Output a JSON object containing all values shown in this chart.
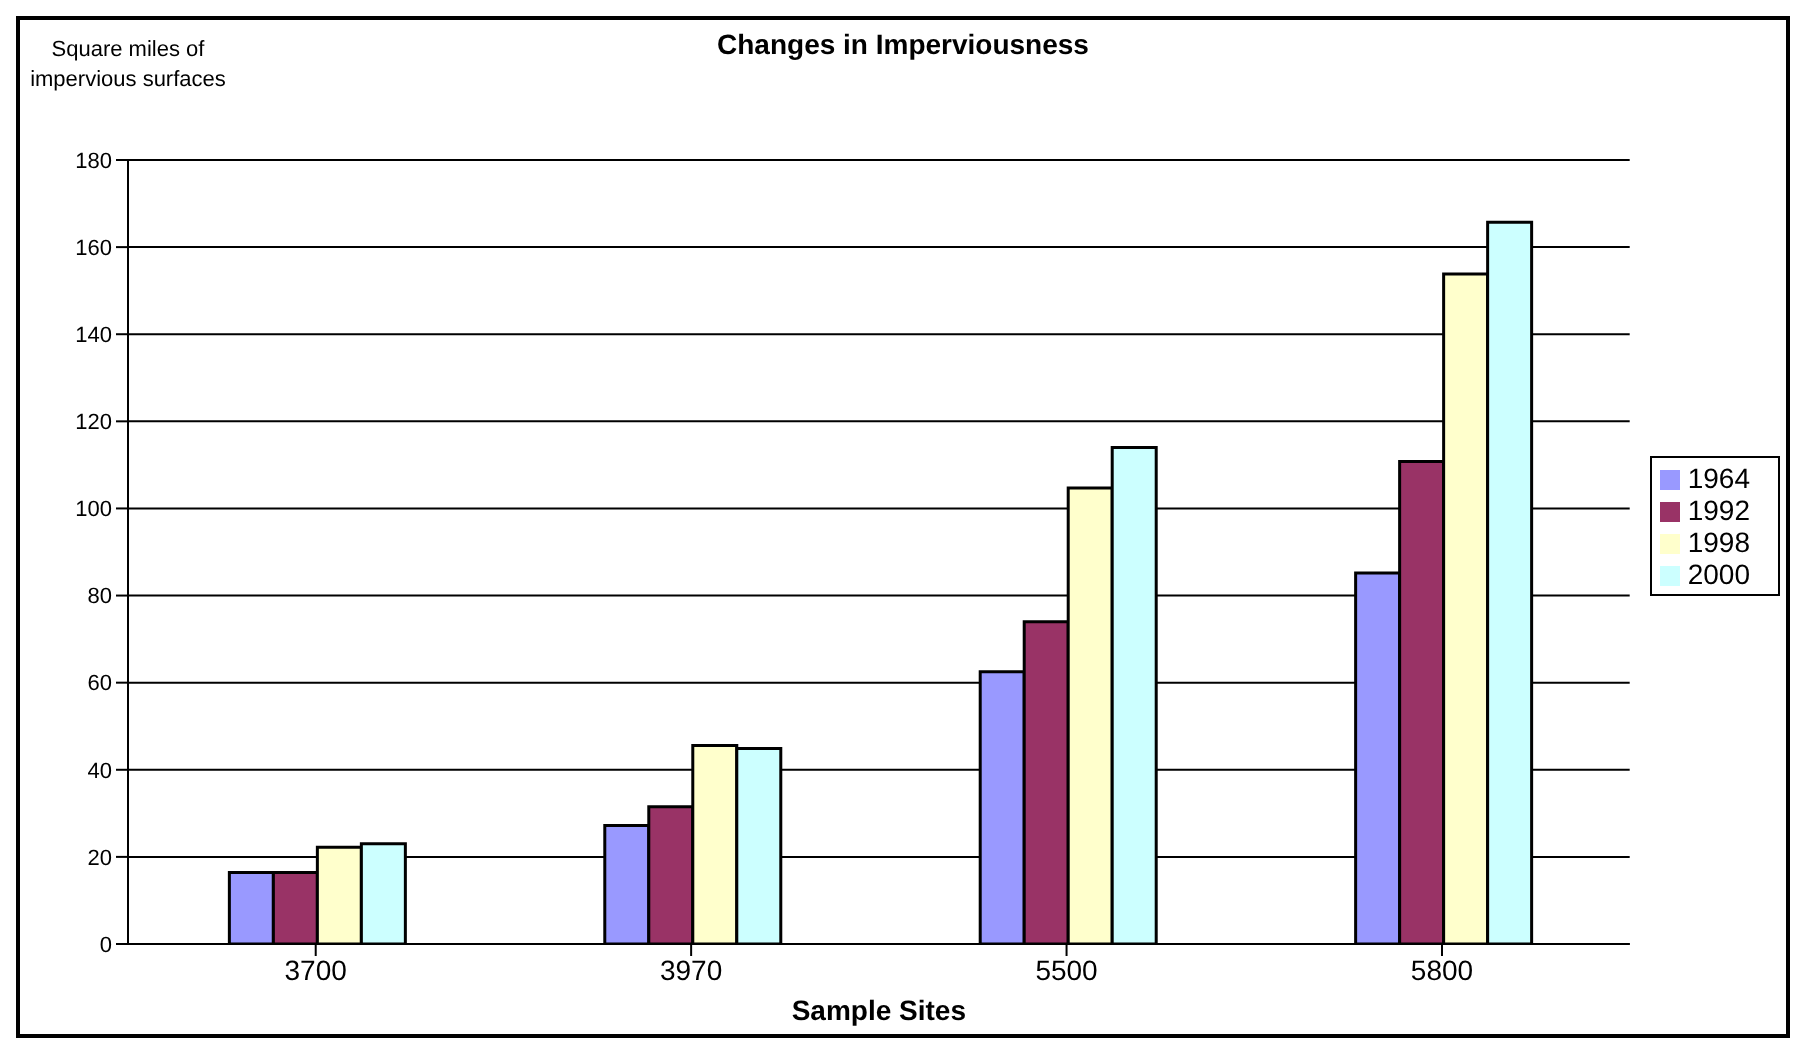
{
  "chart_data": {
    "type": "bar",
    "title": "Changes in Imperviousness",
    "xlabel": "Sample Sites",
    "ylabel": "Square miles of impervious surfaces",
    "categories": [
      "3700",
      "3970",
      "5500",
      "5800"
    ],
    "series": [
      {
        "name": "1964",
        "color": "#9999ff",
        "values": [
          16.4,
          27.2,
          62.5,
          85.2
        ]
      },
      {
        "name": "1992",
        "color": "#993366",
        "values": [
          16.4,
          31.5,
          74.0,
          110.8
        ]
      },
      {
        "name": "1998",
        "color": "#ffffcc",
        "values": [
          22.2,
          45.6,
          104.7,
          153.8
        ]
      },
      {
        "name": "2000",
        "color": "#ccffff",
        "values": [
          23.0,
          44.9,
          114.0,
          165.7
        ]
      }
    ],
    "ylim": [
      0,
      180
    ],
    "yticks": [
      0,
      20,
      40,
      60,
      80,
      100,
      120,
      140,
      160,
      180
    ],
    "grid": "y",
    "legend": "right"
  }
}
